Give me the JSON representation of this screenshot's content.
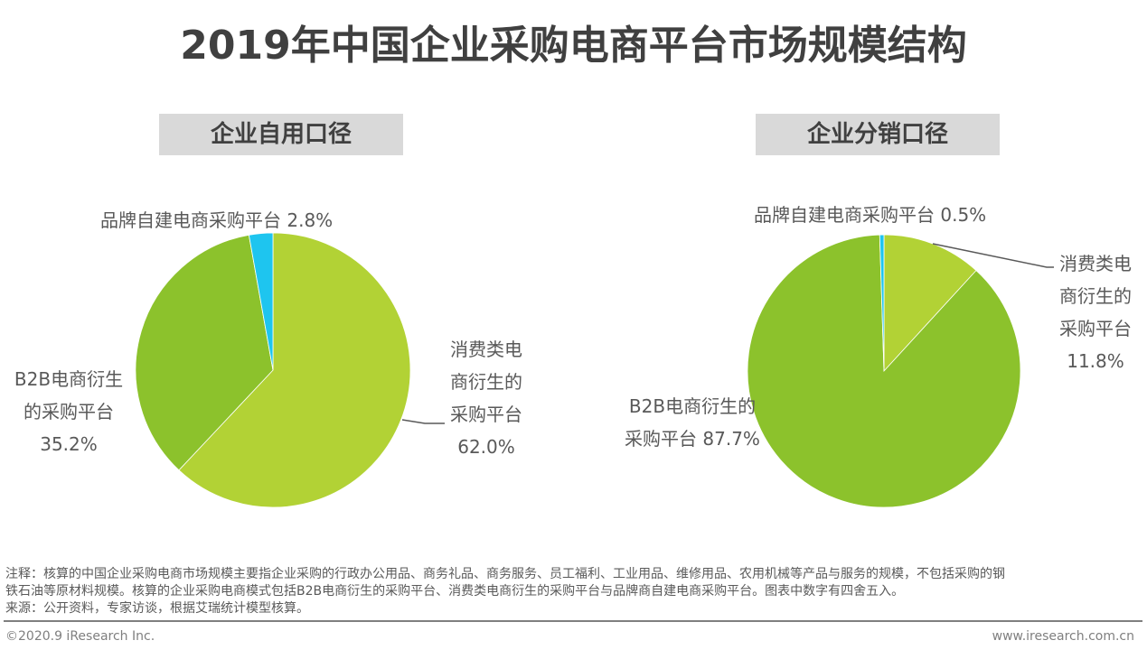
{
  "title": "2019年中国企业采购电商平台市场规模结构",
  "colors": {
    "consumer": "#b2d235",
    "b2b": "#8cc22c",
    "brand": "#1ec5ef",
    "leader_line": "#595959",
    "subtitle_bg": "#d9d9d9"
  },
  "panels": [
    {
      "subtitle": "企业自用口径",
      "labels": {
        "brand_line1": "品牌自建电商采购平台 2.8%",
        "b2b_line1": "B2B电商衍生",
        "b2b_line2": "的采购平台",
        "b2b_line3": "35.2%",
        "consumer_line1": "消费类电",
        "consumer_line2": "商衍生的",
        "consumer_line3": "采购平台",
        "consumer_line4": "62.0%"
      }
    },
    {
      "subtitle": "企业分销口径",
      "labels": {
        "brand_line1": "品牌自建电商采购平台 0.5%",
        "b2b_line1": "B2B电商衍生的",
        "b2b_line2": "采购平台 87.7%",
        "consumer_line1": "消费类电",
        "consumer_line2": "商衍生的",
        "consumer_line3": "采购平台",
        "consumer_line4": "11.8%"
      }
    }
  ],
  "chart_data": [
    {
      "type": "pie",
      "title": "企业自用口径",
      "start_angle": "12 o'clock, clockwise",
      "categories": [
        "消费类电商衍生的采购平台",
        "B2B电商衍生的采购平台",
        "品牌自建电商采购平台"
      ],
      "values": [
        62.0,
        35.2,
        2.8
      ],
      "unit": "%",
      "colors": [
        "#b2d235",
        "#8cc22c",
        "#1ec5ef"
      ]
    },
    {
      "type": "pie",
      "title": "企业分销口径",
      "start_angle": "12 o'clock, clockwise",
      "categories": [
        "消费类电商衍生的采购平台",
        "B2B电商衍生的采购平台",
        "品牌自建电商采购平台"
      ],
      "values": [
        11.8,
        87.7,
        0.5
      ],
      "unit": "%",
      "colors": [
        "#b2d235",
        "#8cc22c",
        "#1ec5ef"
      ]
    }
  ],
  "notes": {
    "line1": "注释：核算的中国企业采购电商市场规模主要指企业采购的行政办公用品、商务礼品、商务服务、员工福利、工业用品、维修用品、农用机械等产品与服务的规模，不包括采购的钢",
    "line2": "铁石油等原材料规模。核算的企业采购电商模式包括B2B电商衍生的采购平台、消费类电商衍生的采购平台与品牌商自建电商采购平台。图表中数字有四舍五入。",
    "line3": "来源：公开资料，专家访谈，根据艾瑞统计模型核算。"
  },
  "footer": {
    "copyright": "©2020.9 iResearch Inc.",
    "website": "www.iresearch.com.cn"
  }
}
